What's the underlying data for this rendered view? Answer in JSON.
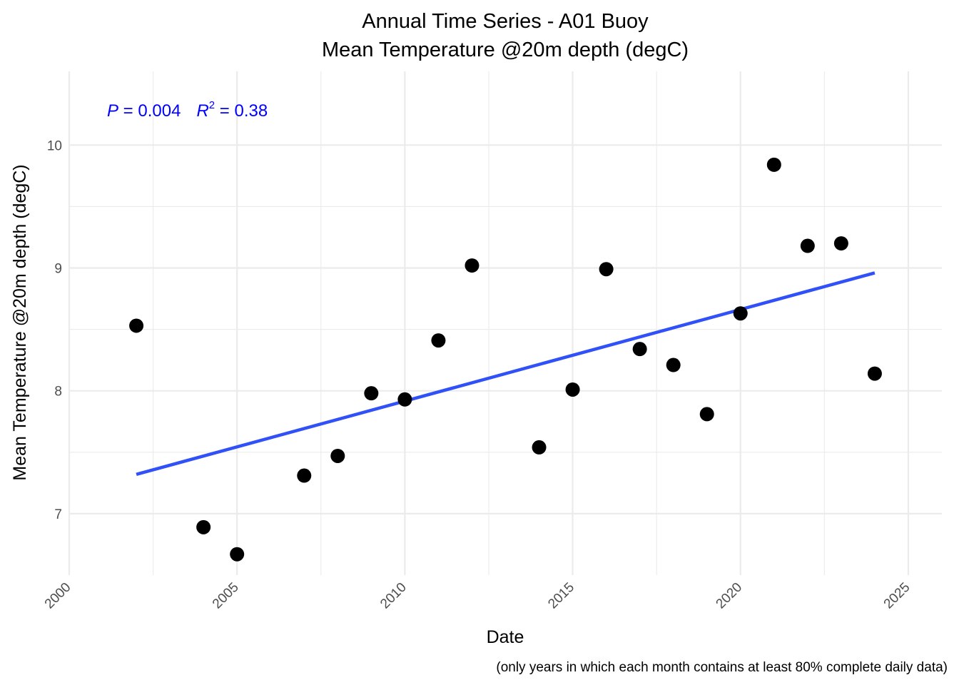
{
  "chart_data": {
    "type": "scatter",
    "title": "Annual Time Series - A01 Buoy",
    "subtitle": "Mean Temperature @20m depth (degC)",
    "xlabel": "Date",
    "ylabel": "Mean Temperature @20m depth (degC)",
    "caption": "(only years in which each month contains at least 80% complete daily data)",
    "xlim": [
      2000,
      2026
    ],
    "ylim": [
      6.5,
      10.6
    ],
    "xticks": [
      2000,
      2005,
      2010,
      2015,
      2020,
      2025
    ],
    "yticks": [
      7,
      8,
      9,
      10
    ],
    "grid": true,
    "annotation": {
      "p_label": "P",
      "p_text": " = 0.004",
      "r_label": "R",
      "r_sup": "2",
      "r_text": " = 0.38",
      "color": "#0000ff"
    },
    "points": [
      {
        "x": 2002,
        "y": 8.53
      },
      {
        "x": 2004,
        "y": 6.89
      },
      {
        "x": 2005,
        "y": 6.67
      },
      {
        "x": 2007,
        "y": 7.31
      },
      {
        "x": 2008,
        "y": 7.47
      },
      {
        "x": 2009,
        "y": 7.98
      },
      {
        "x": 2010,
        "y": 7.93
      },
      {
        "x": 2011,
        "y": 8.41
      },
      {
        "x": 2012,
        "y": 9.02
      },
      {
        "x": 2014,
        "y": 7.54
      },
      {
        "x": 2015,
        "y": 8.01
      },
      {
        "x": 2016,
        "y": 8.99
      },
      {
        "x": 2017,
        "y": 8.34
      },
      {
        "x": 2018,
        "y": 8.21
      },
      {
        "x": 2019,
        "y": 7.81
      },
      {
        "x": 2020,
        "y": 8.63
      },
      {
        "x": 2021,
        "y": 9.84
      },
      {
        "x": 2022,
        "y": 9.18
      },
      {
        "x": 2023,
        "y": 9.2
      },
      {
        "x": 2024,
        "y": 8.14
      }
    ],
    "trend_line": {
      "x": [
        2002,
        2024
      ],
      "y": [
        7.32,
        8.96
      ],
      "color": "#3050f8"
    },
    "point_color": "#000000"
  }
}
